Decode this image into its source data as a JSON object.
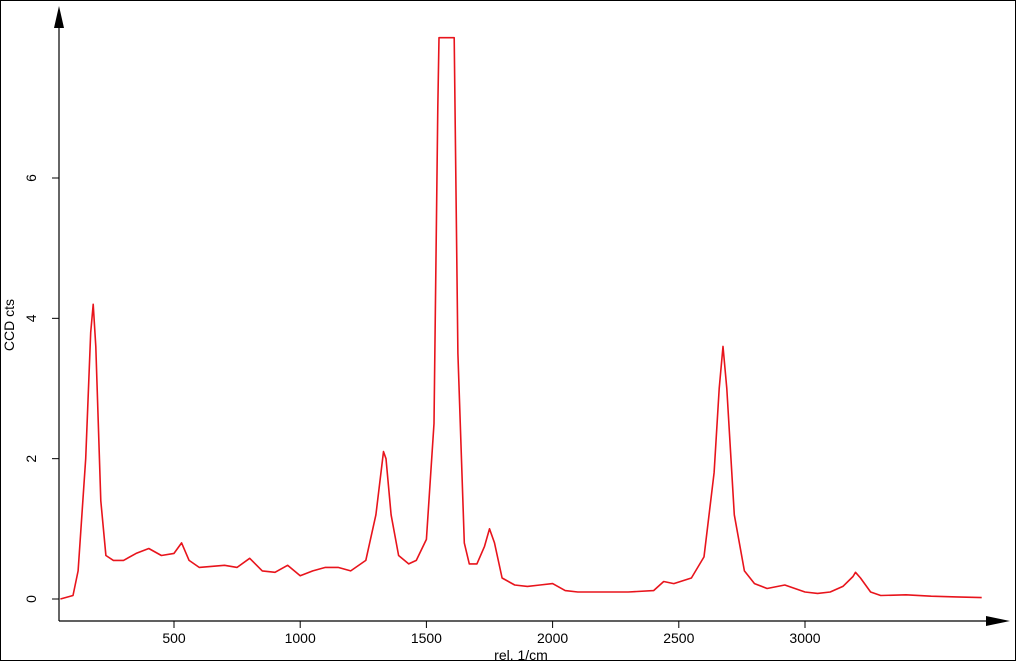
{
  "chart_data": {
    "type": "line",
    "title": "",
    "xlabel": "rel. 1/cm",
    "ylabel": "CCD cts",
    "xlim": [
      50,
      3700
    ],
    "ylim": [
      -0.3,
      8.4
    ],
    "x_ticks": [
      500,
      1000,
      1500,
      2000,
      2500,
      3000
    ],
    "y_ticks": [
      0,
      2,
      4,
      6
    ],
    "x_tick_labels": [
      "500",
      "1000",
      "1500",
      "2000",
      "2500",
      "3000"
    ],
    "y_tick_labels": [
      "0",
      "2",
      "4",
      "6"
    ],
    "grid": false,
    "legend": "none",
    "colors": {
      "line": "#e8141c",
      "axes": "#000000"
    },
    "series": [
      {
        "x": [
          50,
          100,
          120,
          150,
          170,
          180,
          190,
          210,
          230,
          260,
          300,
          350,
          400,
          450,
          500,
          530,
          560,
          600,
          700,
          750,
          800,
          850,
          900,
          950,
          1000,
          1050,
          1100,
          1150,
          1200,
          1260,
          1300,
          1330,
          1340,
          1360,
          1390,
          1430,
          1460,
          1500,
          1530,
          1545,
          1550,
          1570,
          1600,
          1610,
          1625,
          1650,
          1670,
          1700,
          1730,
          1750,
          1770,
          1800,
          1850,
          1900,
          1950,
          2000,
          2050,
          2100,
          2200,
          2300,
          2400,
          2440,
          2480,
          2550,
          2600,
          2640,
          2660,
          2675,
          2690,
          2720,
          2760,
          2800,
          2850,
          2920,
          3000,
          3050,
          3100,
          3150,
          3190,
          3200,
          3220,
          3260,
          3300,
          3400,
          3500,
          3600,
          3700
        ],
        "y": [
          0.0,
          0.05,
          0.4,
          2.0,
          3.8,
          4.2,
          3.6,
          1.4,
          0.62,
          0.55,
          0.55,
          0.65,
          0.72,
          0.62,
          0.65,
          0.8,
          0.55,
          0.45,
          0.48,
          0.45,
          0.58,
          0.4,
          0.38,
          0.48,
          0.33,
          0.4,
          0.45,
          0.45,
          0.4,
          0.55,
          1.2,
          2.1,
          2.0,
          1.2,
          0.62,
          0.5,
          0.55,
          0.85,
          2.5,
          7.0,
          8.0,
          8.0,
          8.0,
          8.0,
          3.5,
          0.8,
          0.5,
          0.5,
          0.75,
          1.0,
          0.8,
          0.3,
          0.2,
          0.18,
          0.2,
          0.22,
          0.12,
          0.1,
          0.1,
          0.1,
          0.12,
          0.25,
          0.22,
          0.3,
          0.6,
          1.8,
          3.0,
          3.6,
          3.0,
          1.2,
          0.4,
          0.22,
          0.15,
          0.2,
          0.1,
          0.08,
          0.1,
          0.18,
          0.32,
          0.38,
          0.3,
          0.1,
          0.05,
          0.06,
          0.04,
          0.03,
          0.02
        ]
      }
    ]
  }
}
